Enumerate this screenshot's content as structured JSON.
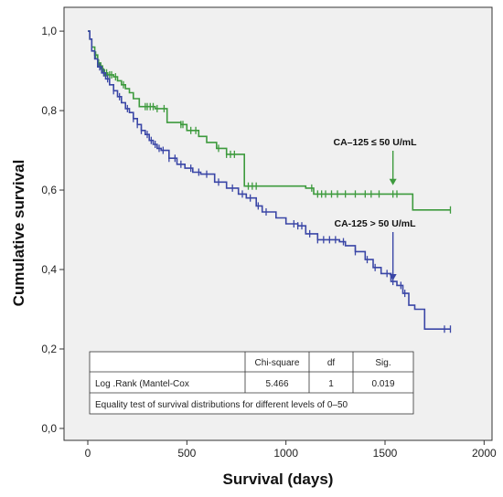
{
  "chart_data": {
    "type": "line",
    "subtype": "kaplan-meier",
    "xlabel": "Survival (days)",
    "ylabel": "Cumulative survival",
    "xlim": [
      -120,
      2040
    ],
    "ylim": [
      -0.03,
      1.06
    ],
    "x_ticks": [
      0,
      500,
      1000,
      1500,
      2000
    ],
    "y_ticks": [
      0.0,
      0.2,
      0.4,
      0.6,
      0.8,
      1.0
    ],
    "x_tick_labels": [
      "0",
      "500",
      "1000",
      "1500",
      "2000"
    ],
    "y_tick_labels": [
      "0,0",
      "0,2",
      "0,4",
      "0,6",
      "0,8",
      "1,0"
    ],
    "grid": false,
    "plot_background": "#f0f0f0",
    "series": [
      {
        "name": "CA–125 ≤ 50 U/mL",
        "color": "#3d9a3d",
        "points": [
          [
            0,
            1.0
          ],
          [
            10,
            0.98
          ],
          [
            20,
            0.96
          ],
          [
            35,
            0.94
          ],
          [
            50,
            0.92
          ],
          [
            65,
            0.905
          ],
          [
            80,
            0.895
          ],
          [
            100,
            0.89
          ],
          [
            130,
            0.885
          ],
          [
            150,
            0.875
          ],
          [
            170,
            0.865
          ],
          [
            190,
            0.855
          ],
          [
            210,
            0.845
          ],
          [
            230,
            0.83
          ],
          [
            260,
            0.81
          ],
          [
            340,
            0.805
          ],
          [
            400,
            0.77
          ],
          [
            470,
            0.765
          ],
          [
            500,
            0.75
          ],
          [
            560,
            0.735
          ],
          [
            600,
            0.72
          ],
          [
            650,
            0.705
          ],
          [
            700,
            0.69
          ],
          [
            760,
            0.69
          ],
          [
            790,
            0.61
          ],
          [
            1100,
            0.605
          ],
          [
            1140,
            0.59
          ],
          [
            1600,
            0.59
          ],
          [
            1640,
            0.55
          ],
          [
            1830,
            0.55
          ]
        ],
        "censor_x": [
          40,
          55,
          70,
          75,
          85,
          95,
          110,
          120,
          140,
          180,
          290,
          300,
          315,
          330,
          350,
          385,
          470,
          480,
          520,
          545,
          660,
          700,
          720,
          740,
          810,
          830,
          850,
          1130,
          1160,
          1180,
          1200,
          1230,
          1260,
          1300,
          1350,
          1400,
          1430,
          1470,
          1540,
          1560,
          1830
        ]
      },
      {
        "name": "CA-125 > 50 U/mL",
        "color": "#3a46a6",
        "points": [
          [
            0,
            1.0
          ],
          [
            10,
            0.98
          ],
          [
            20,
            0.95
          ],
          [
            35,
            0.93
          ],
          [
            50,
            0.91
          ],
          [
            70,
            0.895
          ],
          [
            90,
            0.88
          ],
          [
            110,
            0.865
          ],
          [
            130,
            0.85
          ],
          [
            150,
            0.835
          ],
          [
            170,
            0.82
          ],
          [
            190,
            0.805
          ],
          [
            210,
            0.795
          ],
          [
            230,
            0.78
          ],
          [
            250,
            0.765
          ],
          [
            270,
            0.75
          ],
          [
            290,
            0.74
          ],
          [
            310,
            0.725
          ],
          [
            330,
            0.715
          ],
          [
            350,
            0.705
          ],
          [
            370,
            0.7
          ],
          [
            410,
            0.68
          ],
          [
            450,
            0.665
          ],
          [
            490,
            0.655
          ],
          [
            530,
            0.645
          ],
          [
            570,
            0.64
          ],
          [
            640,
            0.62
          ],
          [
            700,
            0.605
          ],
          [
            760,
            0.59
          ],
          [
            800,
            0.58
          ],
          [
            850,
            0.56
          ],
          [
            880,
            0.545
          ],
          [
            950,
            0.53
          ],
          [
            1000,
            0.515
          ],
          [
            1060,
            0.51
          ],
          [
            1100,
            0.49
          ],
          [
            1160,
            0.475
          ],
          [
            1270,
            0.47
          ],
          [
            1300,
            0.46
          ],
          [
            1350,
            0.445
          ],
          [
            1400,
            0.425
          ],
          [
            1440,
            0.405
          ],
          [
            1480,
            0.39
          ],
          [
            1530,
            0.37
          ],
          [
            1560,
            0.36
          ],
          [
            1590,
            0.34
          ],
          [
            1620,
            0.31
          ],
          [
            1650,
            0.3
          ],
          [
            1700,
            0.25
          ],
          [
            1830,
            0.25
          ]
        ],
        "censor_x": [
          60,
          80,
          100,
          130,
          160,
          200,
          230,
          250,
          270,
          300,
          320,
          340,
          360,
          380,
          410,
          440,
          470,
          520,
          560,
          600,
          660,
          730,
          780,
          820,
          860,
          900,
          1040,
          1060,
          1080,
          1120,
          1160,
          1190,
          1220,
          1250,
          1290,
          1350,
          1410,
          1450,
          1510,
          1540,
          1580,
          1600,
          1800,
          1830
        ]
      }
    ],
    "annotations": [
      {
        "text": "CA–125 ≤ 50 U/mL",
        "arrow_to": [
          1540,
          0.61
        ],
        "arrow_color": "#3d9a3d"
      },
      {
        "text": "CA-125 > 50 U/mL",
        "arrow_to": [
          1540,
          0.37
        ],
        "arrow_color": "#3a46a6"
      }
    ],
    "table": {
      "headers": [
        "",
        "Chi-square",
        "df",
        "Sig."
      ],
      "row": [
        "Log .Rank (Mantel-Cox",
        "5.466",
        "1",
        "0.019"
      ],
      "footer": "Equality test of survival distributions for different levels of 0–50"
    }
  }
}
